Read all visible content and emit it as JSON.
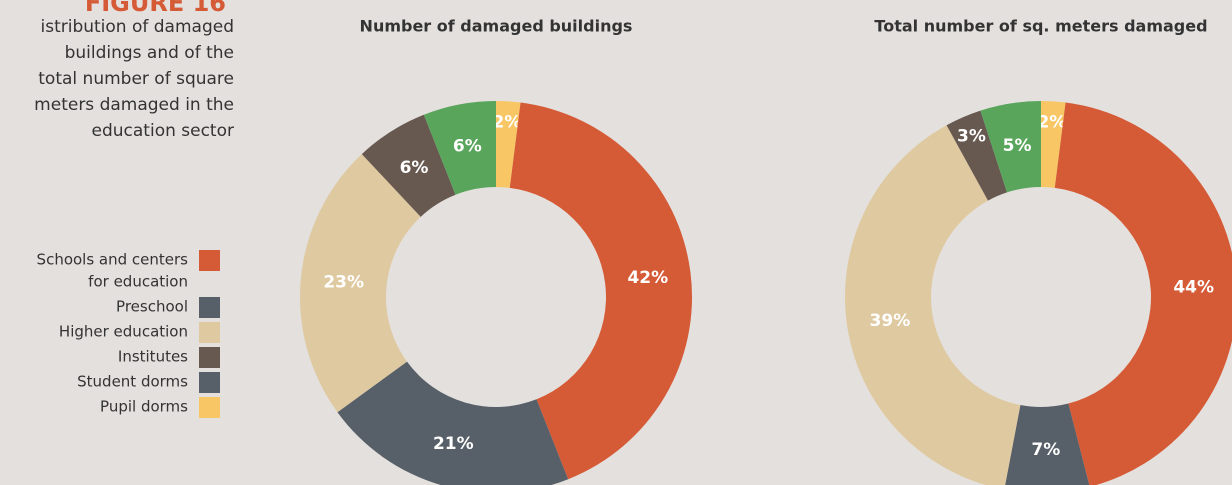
{
  "figure_label": "FIGURE 16",
  "description": [
    "istribution of damaged",
    "buildings and of the",
    "total number of square",
    "meters damaged in the",
    "education sector"
  ],
  "legend": [
    {
      "lines": [
        "Schools and centers",
        "for education"
      ],
      "color": "#d55a36"
    },
    {
      "lines": [
        "Preschool"
      ],
      "color": "#575f68"
    },
    {
      "lines": [
        "Higher education"
      ],
      "color": "#dfc9a0"
    },
    {
      "lines": [
        "Institutes"
      ],
      "color": "#675850"
    },
    {
      "lines": [
        "Student dorms"
      ],
      "color": "#575f68"
    },
    {
      "lines": [
        "Pupil dorms"
      ],
      "color": "#f8c665"
    }
  ],
  "chart_data": [
    {
      "type": "donut",
      "title": "Number of damaged buildings",
      "values": [
        42,
        21,
        23,
        6,
        6,
        2
      ],
      "value_labels": [
        "42%",
        "21%",
        "23%",
        "6%",
        "6%",
        "2%"
      ],
      "colors": [
        "#d55a36",
        "#575f68",
        "#dfc9a0",
        "#675850",
        "#59a55b",
        "#f8c665"
      ]
    },
    {
      "type": "donut",
      "title": "Total number of sq. meters damaged",
      "values": [
        44,
        7,
        39,
        3,
        5,
        2
      ],
      "value_labels": [
        "44%",
        "7%",
        "39%",
        "3%",
        "5%",
        "2%"
      ],
      "colors": [
        "#d55a36",
        "#575f68",
        "#dfc9a0",
        "#675850",
        "#59a55b",
        "#f8c665"
      ]
    }
  ]
}
